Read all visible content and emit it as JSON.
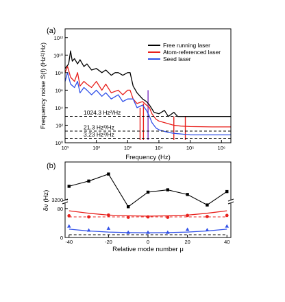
{
  "colors": {
    "black": "#000000",
    "red": "#e8201c",
    "blue": "#2f4fe8",
    "purple": "#7b2fbf",
    "dashed": "#000000"
  },
  "chart_data": [
    {
      "panel_label": "(a)",
      "type": "line",
      "title": "",
      "xlabel": "Frequency (Hz)",
      "ylabel": "Frequency noise S(f) (Hz²/Hz)",
      "x_scale": "log",
      "y_scale": "log",
      "xlim": [
        10,
        2000000
      ],
      "ylim": [
        1,
        10000000000000
      ],
      "x_ticks": [
        {
          "value": 10,
          "label": "10¹"
        },
        {
          "value": 100,
          "label": "10²"
        },
        {
          "value": 1000,
          "label": "10³"
        },
        {
          "value": 10000,
          "label": "10⁴"
        },
        {
          "value": 100000,
          "label": "10⁵"
        },
        {
          "value": 1000000,
          "label": "10⁶"
        }
      ],
      "y_ticks": [
        {
          "value": 1,
          "label": "10⁰"
        },
        {
          "value": 100,
          "label": "10²"
        },
        {
          "value": 10000,
          "label": "10⁴"
        },
        {
          "value": 1000000,
          "label": "10⁶"
        },
        {
          "value": 100000000,
          "label": "10⁸"
        },
        {
          "value": 10000000000,
          "label": "10¹⁰"
        },
        {
          "value": 1000000000000,
          "label": "10¹²"
        }
      ],
      "legend_position": "top-right",
      "series": [
        {
          "name": "Free running laser",
          "color": "#000000",
          "points": [
            [
              10,
              300000000.0
            ],
            [
              13,
              1000000000.0
            ],
            [
              15,
              30000000000.0
            ],
            [
              17,
              2000000000.0
            ],
            [
              20,
              4000000000.0
            ],
            [
              25,
              1000000000.0
            ],
            [
              30,
              3000000000.0
            ],
            [
              40,
              500000000.0
            ],
            [
              50,
              1000000000.0
            ],
            [
              70,
              200000000.0
            ],
            [
              100,
              300000000.0
            ],
            [
              150,
              100000000.0
            ],
            [
              200,
              200000000.0
            ],
            [
              300,
              50000000.0
            ],
            [
              400,
              100000000.0
            ],
            [
              500,
              100000000.0
            ],
            [
              700,
              50000000.0
            ],
            [
              1000,
              100000000.0
            ],
            [
              1200,
              100000000.0
            ],
            [
              1500,
              3000000.0
            ],
            [
              2000,
              500000.0
            ],
            [
              3000,
              100000.0
            ],
            [
              4000,
              50000.0
            ],
            [
              5000,
              20000.0
            ],
            [
              7000,
              3000.0
            ],
            [
              10000,
              2000.0
            ],
            [
              15000,
              5000.0
            ],
            [
              20000,
              1000.0
            ],
            [
              30000,
              3000.0
            ],
            [
              40000,
              1000.0
            ],
            [
              60000,
              1000.0
            ],
            [
              100000,
              1000.0
            ],
            [
              200000,
              1000.0
            ],
            [
              500000,
              1000.0
            ],
            [
              1000000,
              1000.0
            ],
            [
              2000000,
              1000.0
            ]
          ]
        },
        {
          "name": "Atom-referenced laser",
          "color": "#e8201c",
          "points": [
            [
              10,
              100000000.0
            ],
            [
              12,
              500000000.0
            ],
            [
              15,
              30000000.0
            ],
            [
              20,
              10000000.0
            ],
            [
              25,
              100000000.0
            ],
            [
              30,
              3000000.0
            ],
            [
              40,
              10000000.0
            ],
            [
              50,
              5000000.0
            ],
            [
              70,
              2000000.0
            ],
            [
              100,
              10000000.0
            ],
            [
              150,
              1000000.0
            ],
            [
              200,
              5000000.0
            ],
            [
              300,
              500000.0
            ],
            [
              500,
              1000000.0
            ],
            [
              700,
              300000.0
            ],
            [
              1000,
              1000000.0
            ],
            [
              1200,
              1000000.0
            ],
            [
              1500,
              100000.0
            ],
            [
              2000,
              30000.0
            ],
            [
              3000,
              50000.0
            ],
            [
              4000,
              20000.0
            ],
            [
              5000,
              10000.0
            ],
            [
              6000,
              2000.0
            ],
            [
              8000,
              500
            ],
            [
              10000,
              300
            ],
            [
              20000,
              150
            ],
            [
              30000,
              100
            ],
            [
              50000,
              80
            ],
            [
              100000,
              70
            ],
            [
              500000,
              65
            ],
            [
              2000000,
              65
            ]
          ]
        },
        {
          "name": "Seed laser",
          "color": "#2f4fe8",
          "points": [
            [
              10,
              10000000.0
            ],
            [
              12,
              100000000.0
            ],
            [
              15,
              5000000.0
            ],
            [
              20,
              2000000.0
            ],
            [
              25,
              10000000.0
            ],
            [
              30,
              500000.0
            ],
            [
              40,
              2000000.0
            ],
            [
              50,
              1000000.0
            ],
            [
              70,
              300000.0
            ],
            [
              100,
              1000000.0
            ],
            [
              150,
              200000.0
            ],
            [
              200,
              500000.0
            ],
            [
              300,
              100000.0
            ],
            [
              500,
              300000.0
            ],
            [
              700,
              50000.0
            ],
            [
              1000,
              100000.0
            ],
            [
              1500,
              100000.0
            ],
            [
              2000,
              10000.0
            ],
            [
              3000,
              20000.0
            ],
            [
              4000,
              5000.0
            ],
            [
              5000,
              1000.0
            ],
            [
              6000,
              200
            ],
            [
              8000,
              50
            ],
            [
              10000,
              30
            ],
            [
              20000,
              15
            ],
            [
              30000,
              12
            ],
            [
              50000,
              10
            ],
            [
              100000,
              8
            ],
            [
              500000,
              8
            ],
            [
              2000000,
              8
            ]
          ]
        }
      ],
      "spikes": [
        {
          "x": 2500,
          "y_top": 10000.0,
          "color": "#e8201c"
        },
        {
          "x": 3200,
          "y_top": 30000.0,
          "color": "#e8201c"
        },
        {
          "x": 4500,
          "y_top": 1000000.0,
          "color": "#7b2fbf"
        },
        {
          "x": 30000,
          "y_top": 1000.0,
          "color": "#e8201c"
        },
        {
          "x": 70000,
          "y_top": 1000.0,
          "color": "#e8201c"
        }
      ],
      "reference_lines": [
        {
          "label": "1024.3 Hz²/Hz",
          "y": 1024.3
        },
        {
          "label": "21.3 Hz²/Hz",
          "y": 21.3
        },
        {
          "label": "3.23 Hz²/Hz",
          "y": 3.23
        }
      ]
    },
    {
      "panel_label": "(b)",
      "type": "scatter",
      "title": "",
      "xlabel": "Relative mode number μ",
      "ylabel": "δν (Hz)",
      "xlim": [
        -42,
        42
      ],
      "x_ticks": [
        -40,
        -20,
        0,
        20,
        40
      ],
      "y_axis_break": true,
      "segments": {
        "upper": {
          "ylim": [
            3200,
            3800
          ],
          "ticks": [
            3200
          ]
        },
        "lower": {
          "ylim": [
            0,
            95
          ],
          "ticks": [
            0,
            80
          ]
        }
      },
      "series": [
        {
          "name": "",
          "color": "#000000",
          "marker": "square",
          "connected": true,
          "x": [
            -40,
            -30,
            -20,
            -10,
            0,
            10,
            20,
            30,
            40
          ],
          "y": [
            3430,
            3520,
            3640,
            3080,
            3330,
            3370,
            3290,
            3110,
            3340
          ]
        },
        {
          "name": "",
          "color": "#e8201c",
          "marker": "circle",
          "connected": false,
          "x": [
            -40,
            -30,
            -20,
            -10,
            0,
            10,
            20,
            30,
            40
          ],
          "y": [
            60,
            57,
            62,
            56,
            57,
            56,
            61,
            58,
            61
          ]
        },
        {
          "name": "",
          "color": "#2f4fe8",
          "marker": "triangle",
          "connected": false,
          "x": [
            -40,
            -30,
            -20,
            -10,
            0,
            10,
            20,
            30,
            40
          ],
          "y": [
            31,
            20,
            25,
            14,
            14,
            14,
            22,
            21,
            31
          ]
        }
      ],
      "fit_curves": [
        {
          "color": "#e8201c",
          "x": [
            -40,
            -30,
            -20,
            -10,
            0,
            10,
            20,
            30,
            40
          ],
          "y": [
            74,
            67,
            62,
            60,
            59,
            60,
            62,
            67,
            74
          ]
        },
        {
          "color": "#2f4fe8",
          "x": [
            -40,
            -30,
            -20,
            -10,
            0,
            10,
            20,
            30,
            40
          ],
          "y": [
            23,
            18,
            15,
            13.5,
            13,
            13.5,
            15,
            18,
            23
          ]
        }
      ],
      "reference_lines": [
        {
          "color": "#e8201c",
          "y": 57
        },
        {
          "color": "#000000",
          "y": 7.5
        }
      ]
    }
  ]
}
